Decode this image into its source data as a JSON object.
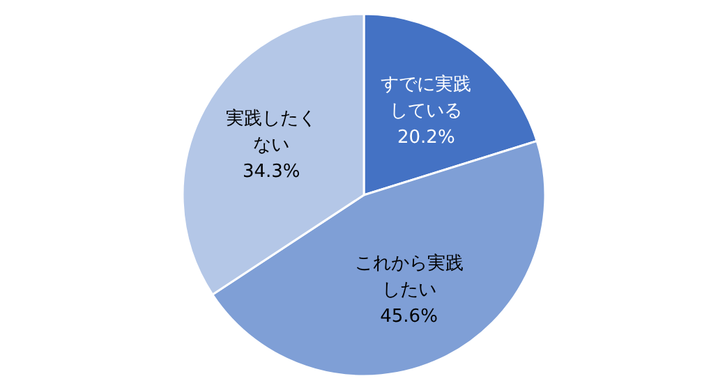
{
  "chart_data": {
    "type": "pie",
    "categories": [
      "すでに実践している",
      "これから実践したい",
      "実践したくない"
    ],
    "values": [
      20.2,
      45.6,
      34.3
    ],
    "value_labels": [
      "20.2%",
      "45.6%",
      "34.3%"
    ],
    "colors": [
      "#4472c4",
      "#7f9fd6",
      "#b4c7e7"
    ]
  }
}
